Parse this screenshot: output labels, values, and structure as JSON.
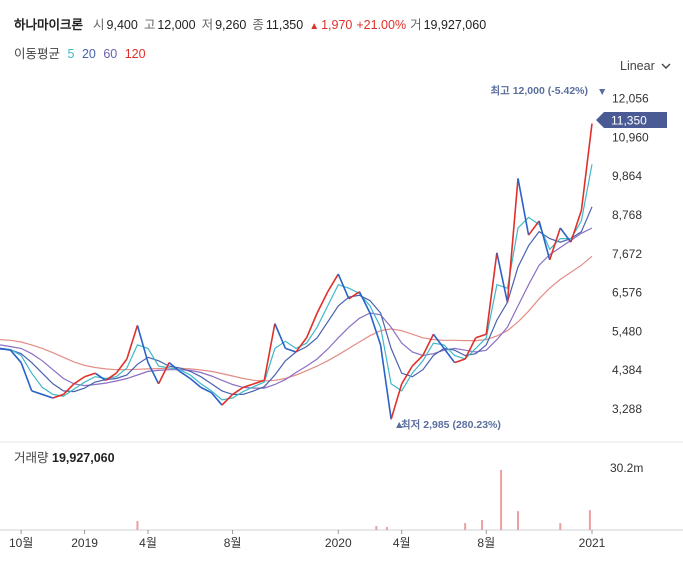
{
  "header": {
    "name": "하나마이크론",
    "open_label": "시",
    "open": "9,400",
    "high_label": "고",
    "high": "12,000",
    "low_label": "저",
    "low": "9,260",
    "close_label": "종",
    "close": "11,350",
    "change": "1,970",
    "change_pct": "+21.00%",
    "volume_label": "거",
    "volume": "19,927,060"
  },
  "ma": {
    "label": "이동평균",
    "periods": [
      "5",
      "20",
      "60",
      "120"
    ]
  },
  "scale_selector": {
    "value": "Linear"
  },
  "annotations": {
    "high": {
      "label": "최고",
      "value": "12,000 (-5.42%)"
    },
    "low": {
      "label": "최저",
      "value": "2,985 (280.23%)"
    },
    "current_price": "11,350"
  },
  "volume_panel": {
    "label": "거래량",
    "value": "19,927,060",
    "axis_max": "30.2m"
  },
  "colors": {
    "up": "#e0302a",
    "down": "#2a62c8",
    "ma5": "#3fb8c8",
    "ma20": "#4a62b0",
    "ma60": "#8c6fc4",
    "ma120": "#e38d86",
    "tag": "#4a5a94",
    "annot": "#5a6e9e"
  },
  "chart_data": {
    "type": "line",
    "title": "하나마이크론",
    "y_ticks": [
      12056,
      10960,
      9864,
      8768,
      7672,
      6576,
      5480,
      4384,
      3288
    ],
    "y_tick_labels": [
      "12,056",
      "10,960",
      "9,864",
      "8,768",
      "7,672",
      "6,576",
      "5,480",
      "4,384",
      "3,288"
    ],
    "ylim": [
      2470,
      12580
    ],
    "x_tick_labels": [
      "10월",
      "2019",
      "4월",
      "8월",
      "2020",
      "4월",
      "8월",
      "2021"
    ],
    "x_ticks": [
      10,
      13,
      16,
      20,
      25,
      28,
      32,
      37
    ],
    "xlim": [
      9,
      37
    ],
    "price": {
      "x": [
        9,
        9.5,
        10,
        10.5,
        11,
        11.5,
        12,
        12.5,
        13,
        13.5,
        14,
        14.5,
        15,
        15.5,
        16,
        16.5,
        17,
        17.5,
        18,
        18.5,
        19,
        19.5,
        20,
        20.5,
        21,
        21.5,
        22,
        22.5,
        23,
        23.5,
        24,
        24.5,
        25,
        25.5,
        26,
        26.5,
        27,
        27.5,
        28,
        28.5,
        29,
        29.5,
        30,
        30.5,
        31,
        31.5,
        32,
        32.5,
        33,
        33.5,
        34,
        34.5,
        35,
        35.5,
        36,
        36.5,
        37
      ],
      "y": [
        5000,
        4950,
        4600,
        3800,
        3700,
        3600,
        3700,
        4000,
        4200,
        4300,
        4100,
        4300,
        4700,
        5650,
        4600,
        4000,
        4600,
        4350,
        4150,
        3900,
        3750,
        3400,
        3700,
        3900,
        4000,
        4100,
        5700,
        5000,
        4900,
        5300,
        6000,
        6600,
        7100,
        6400,
        6600,
        6000,
        5100,
        3000,
        4000,
        4500,
        4800,
        5400,
        5000,
        4600,
        4700,
        5300,
        5400,
        7700,
        6300,
        9800,
        8200,
        8600,
        7500,
        8400,
        8000,
        8900,
        11350
      ]
    },
    "ma5": [
      5000,
      4970,
      4800,
      4300,
      3900,
      3700,
      3650,
      3850,
      4050,
      4200,
      4150,
      4200,
      4450,
      5100,
      5000,
      4500,
      4450,
      4400,
      4250,
      4000,
      3800,
      3550,
      3600,
      3780,
      3920,
      4050,
      5000,
      5200,
      5000,
      5150,
      5600,
      6200,
      6800,
      6700,
      6550,
      6200,
      5600,
      4000,
      3800,
      4300,
      4650,
      5150,
      5100,
      4800,
      4700,
      5000,
      5300,
      6800,
      6700,
      8400,
      8700,
      8500,
      7800,
      8100,
      8100,
      8600,
      10200
    ],
    "ma20": [
      4980,
      4960,
      4850,
      4600,
      4300,
      4000,
      3800,
      3780,
      3880,
      4050,
      4120,
      4150,
      4250,
      4550,
      4750,
      4650,
      4500,
      4450,
      4350,
      4200,
      4000,
      3800,
      3700,
      3700,
      3800,
      3920,
      4250,
      4650,
      4900,
      5050,
      5300,
      5750,
      6200,
      6450,
      6500,
      6350,
      6000,
      5000,
      4300,
      4200,
      4400,
      4800,
      5000,
      4950,
      4800,
      4850,
      5100,
      5800,
      6300,
      7300,
      7900,
      8300,
      8100,
      8000,
      8100,
      8300,
      9000
    ],
    "ma60": [
      5100,
      5050,
      5000,
      4850,
      4650,
      4400,
      4150,
      4000,
      3950,
      3980,
      4020,
      4080,
      4150,
      4250,
      4350,
      4380,
      4400,
      4400,
      4380,
      4320,
      4220,
      4100,
      3980,
      3900,
      3880,
      3880,
      3980,
      4120,
      4320,
      4500,
      4700,
      4980,
      5300,
      5600,
      5850,
      6000,
      5950,
      5600,
      5150,
      4900,
      4800,
      4850,
      4950,
      5000,
      4950,
      4900,
      4950,
      5250,
      5600,
      6200,
      6800,
      7350,
      7650,
      7850,
      8050,
      8250,
      8400
    ],
    "ma120": [
      5250,
      5230,
      5180,
      5100,
      5000,
      4880,
      4750,
      4620,
      4520,
      4460,
      4420,
      4400,
      4400,
      4410,
      4420,
      4430,
      4440,
      4440,
      4420,
      4390,
      4350,
      4290,
      4220,
      4150,
      4100,
      4080,
      4100,
      4150,
      4250,
      4370,
      4500,
      4650,
      4820,
      5000,
      5180,
      5360,
      5500,
      5550,
      5500,
      5400,
      5300,
      5250,
      5230,
      5230,
      5220,
      5220,
      5250,
      5350,
      5500,
      5750,
      6050,
      6400,
      6700,
      6950,
      7150,
      7350,
      7600
    ],
    "volume": {
      "x": [
        15.5,
        26.8,
        27.3,
        31,
        31.8,
        32.7,
        33.5,
        35.5,
        36.9
      ],
      "values": [
        4.5,
        2,
        1.5,
        3.5,
        5,
        30.2,
        9.5,
        3.5,
        10
      ]
    }
  }
}
